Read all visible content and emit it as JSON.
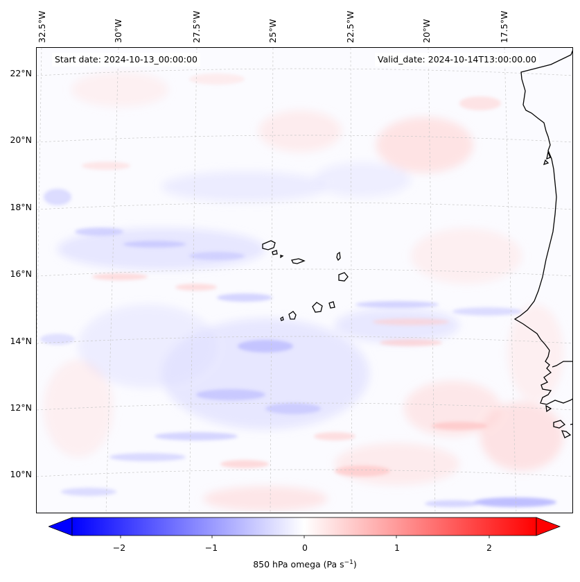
{
  "map": {
    "start_date_label": "Start date: 2024-10-13_00:00:00",
    "valid_date_label": "Valid_date: 2024-10-14T13:00:00.00",
    "longitude_labels": [
      "32.5°W",
      "30°W",
      "27.5°W",
      "25°W",
      "22.5°W",
      "20°W",
      "17.5°W"
    ],
    "latitude_labels": [
      "22°N",
      "20°N",
      "18°N",
      "16°N",
      "14°N",
      "12°N",
      "10°N"
    ],
    "extent": {
      "lon_min": -32.7,
      "lon_max": -15.6,
      "lat_min": 8.9,
      "lat_max": 22.8
    },
    "field": "850 hPa omega",
    "colors": {
      "negative": "#0000ff",
      "zero": "#ffffff",
      "positive": "#ff0000",
      "coastline": "#000000",
      "gridline": "#c8c8c8"
    }
  },
  "colorbar": {
    "label_text": "850 hPa omega (Pa s",
    "label_sup": "−1",
    "label_close": ")",
    "ticks": [
      "−2",
      "−1",
      "0",
      "1",
      "2"
    ],
    "range": [
      -2.7,
      2.7
    ],
    "colormap": "bwr"
  }
}
